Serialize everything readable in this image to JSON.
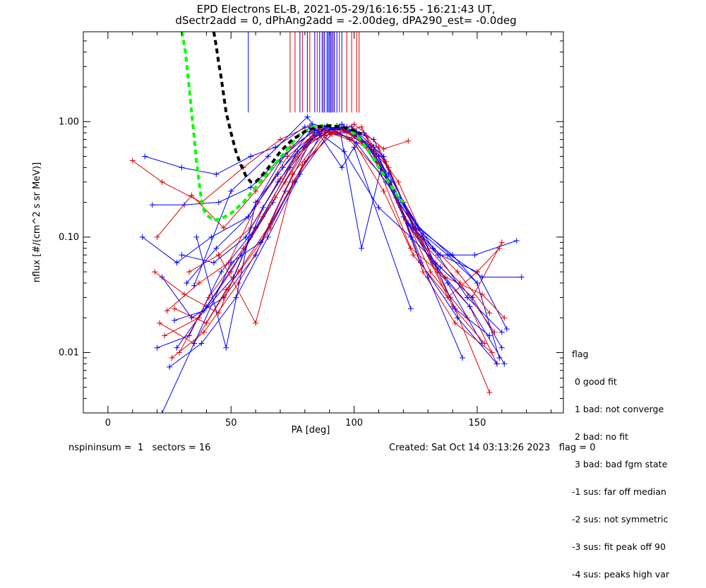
{
  "title_line1": "EPD Electrons EL-B, 2021-05-29/16:16:55 - 16:21:43 UT,",
  "title_line2": "dSectr2add = 0, dPhAng2add = -2.00deg, dPA290_est=  -0.0deg",
  "footer_left": "nspininsum =  1   sectors = 16",
  "footer_right": "Created: Sat Oct 14 03:13:26 2023   flag = 0",
  "legend": {
    "title": "flag",
    "items": [
      " 0 good fit",
      " 1 bad: not converge",
      " 2 bad: no fit",
      " 3 bad: bad fgm state",
      "-1 sus: far off median",
      "-2 sus: not symmetric",
      "-3 sus: fit peak off 90",
      "-4 sus: peaks high var"
    ]
  },
  "colors": {
    "series_a": "#0000ff",
    "series_b": "#e00000",
    "fit_green": "#00ff00",
    "fit_black": "#000000"
  },
  "chart_data": {
    "type": "line",
    "xlabel": "PA [deg]",
    "ylabel": "nflux [#/(cm^2 s sr MeV)]",
    "xlim": [
      -10,
      185
    ],
    "ylim": [
      0.003,
      6.0
    ],
    "yscale": "log",
    "xticks": [
      0,
      50,
      100,
      150
    ],
    "yticks": [
      0.01,
      0.1,
      1.0
    ],
    "ytick_labels": [
      "0.01",
      "0.10",
      "1.00"
    ],
    "grid": false,
    "legend_position": "right-bottom",
    "vertical_markers": {
      "blue_x": [
        57,
        78,
        81,
        84,
        86,
        87,
        88,
        89,
        89.5,
        90,
        90.5,
        91,
        92,
        93,
        95
      ],
      "red_x": [
        74,
        76,
        79,
        82,
        85,
        87.5,
        91.5,
        94,
        97,
        99,
        101,
        102
      ],
      "top": 6.0,
      "bottom": 1.2
    },
    "series": [
      {
        "color": "blue",
        "x": [
          15,
          30,
          44,
          58,
          68,
          80,
          92,
          104,
          116,
          126,
          140,
          150,
          159
        ],
        "y": [
          0.5,
          0.4,
          0.35,
          0.5,
          0.6,
          0.9,
          0.85,
          0.8,
          0.25,
          0.12,
          0.07,
          0.04,
          0.009
        ]
      },
      {
        "color": "red",
        "x": [
          10,
          22,
          38,
          55,
          70,
          82,
          95,
          105,
          118,
          128,
          142,
          155
        ],
        "y": [
          0.46,
          0.3,
          0.2,
          0.4,
          0.7,
          0.92,
          0.88,
          0.75,
          0.3,
          0.1,
          0.05,
          0.022
        ]
      },
      {
        "color": "blue",
        "x": [
          22,
          34,
          47,
          60,
          72,
          84,
          96,
          108,
          120,
          132,
          146,
          160
        ],
        "y": [
          0.045,
          0.02,
          0.03,
          0.07,
          0.25,
          0.8,
          0.9,
          0.7,
          0.2,
          0.08,
          0.03,
          0.015
        ]
      },
      {
        "color": "red",
        "x": [
          19,
          31,
          45,
          58,
          72,
          84,
          97,
          110,
          122,
          134,
          147,
          158
        ],
        "y": [
          0.05,
          0.032,
          0.022,
          0.1,
          0.3,
          0.75,
          0.8,
          0.6,
          0.16,
          0.05,
          0.025,
          0.008
        ]
      },
      {
        "color": "blue",
        "x": [
          20,
          33,
          46,
          60,
          74,
          86,
          99,
          112,
          124,
          138,
          152
        ],
        "y": [
          0.011,
          0.014,
          0.05,
          0.12,
          0.4,
          0.85,
          0.9,
          0.5,
          0.12,
          0.04,
          0.012
        ]
      },
      {
        "color": "red",
        "x": [
          21,
          35,
          48,
          62,
          75,
          88,
          100,
          113,
          125,
          139,
          155
        ],
        "y": [
          0.018,
          0.012,
          0.035,
          0.09,
          0.35,
          0.8,
          0.82,
          0.45,
          0.11,
          0.03,
          0.0045
        ]
      },
      {
        "color": "blue",
        "x": [
          14,
          28,
          42,
          57,
          70,
          83,
          96,
          108,
          121,
          135,
          150,
          162
        ],
        "y": [
          0.1,
          0.06,
          0.1,
          0.15,
          0.45,
          0.95,
          0.85,
          0.6,
          0.14,
          0.07,
          0.05,
          0.016
        ]
      },
      {
        "color": "red",
        "x": [
          23,
          37,
          50,
          63,
          76,
          89,
          101,
          114,
          126,
          140,
          153
        ],
        "y": [
          0.014,
          0.02,
          0.05,
          0.15,
          0.5,
          0.9,
          0.78,
          0.4,
          0.1,
          0.025,
          0.012
        ]
      },
      {
        "color": "blue",
        "x": [
          25,
          38,
          52,
          65,
          78,
          90,
          102,
          115,
          127,
          142,
          158
        ],
        "y": [
          0.0075,
          0.012,
          0.03,
          0.1,
          0.35,
          0.8,
          0.7,
          0.3,
          0.06,
          0.02,
          0.008
        ]
      },
      {
        "color": "red",
        "x": [
          26,
          39,
          53,
          66,
          79,
          92,
          104,
          116,
          128,
          141,
          156
        ],
        "y": [
          0.009,
          0.015,
          0.04,
          0.12,
          0.42,
          0.82,
          0.62,
          0.26,
          0.05,
          0.018,
          0.01
        ]
      },
      {
        "color": "blue",
        "x": [
          28,
          40,
          54,
          67,
          80,
          93,
          106,
          118,
          130,
          144
        ],
        "y": [
          0.011,
          0.025,
          0.07,
          0.2,
          0.6,
          0.92,
          0.6,
          0.2,
          0.045,
          0.009
        ]
      },
      {
        "color": "red",
        "x": [
          29,
          41,
          55,
          68,
          81,
          94,
          107,
          119,
          131,
          146
        ],
        "y": [
          0.01,
          0.03,
          0.08,
          0.22,
          0.65,
          0.9,
          0.58,
          0.18,
          0.05,
          0.02
        ]
      },
      {
        "color": "blue",
        "x": [
          30,
          43,
          56,
          69,
          82,
          95,
          108,
          120,
          132,
          147,
          161
        ],
        "y": [
          0.07,
          0.06,
          0.1,
          0.3,
          0.7,
          0.95,
          0.55,
          0.15,
          0.06,
          0.025,
          0.008
        ]
      },
      {
        "color": "red",
        "x": [
          33,
          45,
          58,
          70,
          83,
          96,
          109,
          121,
          133,
          148,
          160
        ],
        "y": [
          0.05,
          0.07,
          0.12,
          0.32,
          0.75,
          0.88,
          0.5,
          0.14,
          0.06,
          0.03,
          0.09
        ]
      },
      {
        "color": "blue",
        "x": [
          36,
          48,
          60,
          71,
          84,
          97,
          110,
          122,
          134,
          149,
          166
        ],
        "y": [
          0.1,
          0.011,
          0.2,
          0.4,
          0.8,
          0.9,
          0.5,
          0.13,
          0.07,
          0.07,
          0.093
        ]
      },
      {
        "color": "red",
        "x": [
          24,
          37,
          49,
          61,
          73,
          86,
          98,
          111,
          123,
          137,
          152,
          161
        ],
        "y": [
          0.023,
          0.04,
          0.06,
          0.2,
          0.5,
          0.85,
          0.7,
          0.35,
          0.08,
          0.045,
          0.032,
          0.02
        ]
      },
      {
        "color": "blue",
        "x": [
          32,
          44,
          57,
          69,
          82,
          94,
          103,
          111,
          125,
          139,
          152,
          168
        ],
        "y": [
          0.04,
          0.08,
          0.15,
          0.35,
          0.82,
          0.9,
          0.08,
          0.4,
          0.13,
          0.07,
          0.045,
          0.045
        ]
      },
      {
        "color": "red",
        "x": [
          20,
          34,
          47,
          60,
          74,
          86,
          99,
          112,
          124,
          138,
          150,
          159
        ],
        "y": [
          0.1,
          0.23,
          0.12,
          0.25,
          0.6,
          0.88,
          0.72,
          0.25,
          0.07,
          0.03,
          0.05,
          0.08
        ]
      },
      {
        "color": "blue",
        "x": [
          18,
          31,
          45,
          58,
          71,
          84,
          96,
          110,
          123,
          135,
          148,
          160
        ],
        "y": [
          0.19,
          0.19,
          0.2,
          0.27,
          0.5,
          0.85,
          0.55,
          0.18,
          0.1,
          0.055,
          0.03,
          0.011
        ]
      },
      {
        "color": "red",
        "x": [
          27,
          40,
          53,
          66,
          80,
          91,
          103,
          117,
          130,
          143,
          157
        ],
        "y": [
          0.024,
          0.018,
          0.05,
          0.13,
          0.45,
          0.78,
          0.9,
          0.22,
          0.08,
          0.04,
          0.015
        ]
      },
      {
        "color": "blue",
        "x": [
          27,
          39,
          51,
          63,
          77,
          89,
          101,
          113,
          125,
          138,
          150
        ],
        "y": [
          0.019,
          0.023,
          0.045,
          0.18,
          0.55,
          0.92,
          0.65,
          0.3,
          0.12,
          0.07,
          0.04
        ]
      },
      {
        "color": "blue",
        "x": [
          22,
          35,
          50,
          62,
          76,
          88,
          101,
          114,
          128,
          141,
          155
        ],
        "y": [
          0.003,
          0.012,
          0.06,
          0.09,
          0.3,
          0.9,
          0.82,
          0.35,
          0.1,
          0.024,
          0.014
        ]
      },
      {
        "color": "blue",
        "x": [
          35,
          50,
          65,
          81,
          95,
          100,
          123
        ],
        "y": [
          0.038,
          0.25,
          0.5,
          1.1,
          0.4,
          0.6,
          0.024
        ]
      },
      {
        "color": "red",
        "x": [
          45,
          60,
          75,
          88,
          100,
          112,
          122
        ],
        "y": [
          0.07,
          0.018,
          0.3,
          0.75,
          0.95,
          0.58,
          0.68
        ]
      }
    ],
    "fit_curves": [
      {
        "color": "green",
        "style": "dashed",
        "x": [
          30,
          31.5,
          33,
          34,
          35,
          36,
          37,
          38,
          39,
          41,
          43,
          46,
          50,
          55,
          60,
          66,
          72,
          78,
          83,
          88,
          93,
          98,
          102,
          106,
          110,
          114,
          118,
          120
        ],
        "y": [
          6.0,
          4.0,
          2.0,
          1.2,
          0.75,
          0.45,
          0.3,
          0.21,
          0.17,
          0.15,
          0.14,
          0.145,
          0.16,
          0.2,
          0.27,
          0.38,
          0.55,
          0.78,
          0.9,
          0.93,
          0.92,
          0.86,
          0.72,
          0.55,
          0.4,
          0.3,
          0.22,
          0.2
        ]
      },
      {
        "color": "black",
        "style": "dashed",
        "x": [
          43,
          44,
          45,
          46,
          47,
          48,
          50,
          52,
          54,
          56,
          58,
          60,
          62,
          66,
          70,
          75,
          80,
          85,
          90,
          95,
          100,
          103
        ],
        "y": [
          6.0,
          4.5,
          3.2,
          2.4,
          1.7,
          1.2,
          0.8,
          0.55,
          0.42,
          0.34,
          0.3,
          0.3,
          0.33,
          0.42,
          0.55,
          0.7,
          0.82,
          0.9,
          0.92,
          0.9,
          0.84,
          0.78
        ]
      }
    ]
  }
}
